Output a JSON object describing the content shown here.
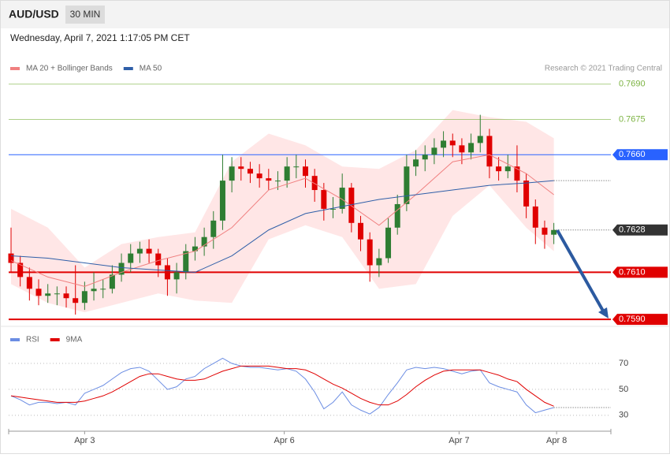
{
  "header": {
    "symbol": "AUD/USD",
    "interval": "30 MIN",
    "datetime": "Wednesday, April 7, 2021 1:17:05 PM CET",
    "credit": "Research © 2021 Trading Central"
  },
  "chart_data": [
    {
      "type": "candlestick",
      "up_color": "#2e7d32",
      "down_color": "#e00000",
      "xlim": [
        0,
        65.2
      ],
      "ylim": [
        0.7585,
        0.77
      ],
      "ohlc": [
        [
          0.7618,
          0.7629,
          0.761,
          0.7614
        ],
        [
          0.7614,
          0.7617,
          0.7604,
          0.7608
        ],
        [
          0.7608,
          0.7612,
          0.7598,
          0.7603
        ],
        [
          0.7603,
          0.7607,
          0.7596,
          0.76
        ],
        [
          0.76,
          0.7605,
          0.7597,
          0.7601
        ],
        [
          0.7601,
          0.7604,
          0.7596,
          0.7601
        ],
        [
          0.7601,
          0.7604,
          0.7595,
          0.7599
        ],
        [
          0.7599,
          0.7613,
          0.7592,
          0.7597
        ],
        [
          0.7597,
          0.7606,
          0.7594,
          0.7602
        ],
        [
          0.7602,
          0.761,
          0.7598,
          0.7603
        ],
        [
          0.7603,
          0.7607,
          0.7599,
          0.7603
        ],
        [
          0.7603,
          0.7613,
          0.7601,
          0.7609
        ],
        [
          0.7609,
          0.7618,
          0.7606,
          0.7614
        ],
        [
          0.7614,
          0.7622,
          0.761,
          0.7618
        ],
        [
          0.7618,
          0.7623,
          0.7614,
          0.762
        ],
        [
          0.762,
          0.7624,
          0.7614,
          0.7618
        ],
        [
          0.7618,
          0.762,
          0.7608,
          0.7613
        ],
        [
          0.7613,
          0.7616,
          0.76,
          0.7607
        ],
        [
          0.7607,
          0.7614,
          0.7601,
          0.761
        ],
        [
          0.761,
          0.7622,
          0.7607,
          0.7619
        ],
        [
          0.7619,
          0.7625,
          0.7615,
          0.7621
        ],
        [
          0.7621,
          0.7629,
          0.7617,
          0.7625
        ],
        [
          0.7625,
          0.7636,
          0.762,
          0.7632
        ],
        [
          0.7632,
          0.766,
          0.7628,
          0.7649
        ],
        [
          0.7649,
          0.7659,
          0.7644,
          0.7655
        ],
        [
          0.7655,
          0.7659,
          0.7649,
          0.7654
        ],
        [
          0.7654,
          0.7657,
          0.7648,
          0.7652
        ],
        [
          0.7652,
          0.7656,
          0.7646,
          0.765
        ],
        [
          0.765,
          0.7654,
          0.7645,
          0.7649
        ],
        [
          0.7649,
          0.7653,
          0.7645,
          0.7649
        ],
        [
          0.7649,
          0.7659,
          0.7646,
          0.7655
        ],
        [
          0.7655,
          0.766,
          0.765,
          0.7655
        ],
        [
          0.7655,
          0.7658,
          0.7646,
          0.7651
        ],
        [
          0.7651,
          0.7654,
          0.764,
          0.7645
        ],
        [
          0.7645,
          0.7648,
          0.7632,
          0.7637
        ],
        [
          0.7637,
          0.7642,
          0.7633,
          0.7637
        ],
        [
          0.7637,
          0.7652,
          0.7635,
          0.7646
        ],
        [
          0.7646,
          0.7648,
          0.7627,
          0.7631
        ],
        [
          0.7631,
          0.7634,
          0.7619,
          0.7624
        ],
        [
          0.7624,
          0.7627,
          0.7606,
          0.7613
        ],
        [
          0.7613,
          0.762,
          0.7608,
          0.7616
        ],
        [
          0.7616,
          0.7633,
          0.7614,
          0.7629
        ],
        [
          0.7629,
          0.7643,
          0.7626,
          0.7639
        ],
        [
          0.7639,
          0.766,
          0.7636,
          0.7655
        ],
        [
          0.7655,
          0.7662,
          0.7651,
          0.7658
        ],
        [
          0.7658,
          0.7664,
          0.7653,
          0.766
        ],
        [
          0.766,
          0.7667,
          0.7656,
          0.7663
        ],
        [
          0.7663,
          0.767,
          0.7659,
          0.7666
        ],
        [
          0.7666,
          0.7669,
          0.7659,
          0.7664
        ],
        [
          0.7664,
          0.7667,
          0.7656,
          0.7661
        ],
        [
          0.7661,
          0.7669,
          0.7658,
          0.7665
        ],
        [
          0.7665,
          0.7677,
          0.7661,
          0.7668
        ],
        [
          0.7668,
          0.7671,
          0.765,
          0.7655
        ],
        [
          0.7655,
          0.7659,
          0.7649,
          0.7653
        ],
        [
          0.7653,
          0.766,
          0.765,
          0.7655
        ],
        [
          0.7655,
          0.7664,
          0.7644,
          0.7649
        ],
        [
          0.7649,
          0.7652,
          0.7633,
          0.7638
        ],
        [
          0.7638,
          0.7641,
          0.7622,
          0.7629
        ],
        [
          0.7629,
          0.7632,
          0.762,
          0.7626
        ],
        [
          0.7626,
          0.7631,
          0.7622,
          0.7628
        ]
      ],
      "series": [
        {
          "name": "MA 20 + Bollinger Bands",
          "color": "#f08080",
          "band_color": "#ffe0e0",
          "x": [
            0,
            4,
            8,
            12,
            16,
            20,
            24,
            28,
            32,
            36,
            40,
            44,
            48,
            52,
            56,
            59
          ],
          "values": [
            0.7615,
            0.7608,
            0.7604,
            0.761,
            0.7615,
            0.7619,
            0.7629,
            0.7645,
            0.765,
            0.7641,
            0.763,
            0.7643,
            0.7657,
            0.766,
            0.7652,
            0.7643
          ],
          "upper": [
            0.7637,
            0.7629,
            0.7612,
            0.7622,
            0.7625,
            0.7627,
            0.7657,
            0.7669,
            0.7664,
            0.7655,
            0.7654,
            0.7662,
            0.7679,
            0.7676,
            0.7674,
            0.7667
          ],
          "lower": [
            0.7605,
            0.7597,
            0.7593,
            0.7597,
            0.7601,
            0.7598,
            0.7597,
            0.7624,
            0.763,
            0.7625,
            0.7603,
            0.7605,
            0.7634,
            0.7647,
            0.7629,
            0.7619
          ]
        },
        {
          "name": "MA 50",
          "color": "#2f5fa8",
          "x": [
            0,
            4,
            8,
            12,
            16,
            20,
            24,
            28,
            32,
            36,
            40,
            44,
            48,
            52,
            56,
            59
          ],
          "values": [
            0.7617,
            0.7616,
            0.7614,
            0.7612,
            0.7611,
            0.761,
            0.7617,
            0.7628,
            0.7635,
            0.7638,
            0.7641,
            0.7643,
            0.7645,
            0.7647,
            0.7648,
            0.7649
          ]
        }
      ],
      "levels": [
        {
          "value": 0.769,
          "label": "0.7690",
          "color": "#7cb342",
          "boxed": false,
          "width": 0.6
        },
        {
          "value": 0.7675,
          "label": "0.7675",
          "color": "#7cb342",
          "boxed": false,
          "width": 0.6
        },
        {
          "value": 0.766,
          "label": "0.7660",
          "color": "#2962ff",
          "boxed": true,
          "width": 1
        },
        {
          "value": 0.7628,
          "label": "0.7628",
          "color": "#333333",
          "boxed": true,
          "width": 0,
          "dotted": true
        },
        {
          "value": 0.761,
          "label": "0.7610",
          "color": "#e00000",
          "boxed": true,
          "width": 2
        },
        {
          "value": 0.759,
          "label": "0.7590",
          "color": "#e00000",
          "boxed": true,
          "width": 2
        }
      ]
    },
    {
      "type": "line",
      "xlim": [
        0,
        65.2
      ],
      "ylim": [
        22,
        84
      ],
      "yticks": [
        30,
        50,
        70
      ],
      "grid": true,
      "xticks": [
        {
          "value": 8,
          "label": "Apr 3"
        },
        {
          "value": 29.7,
          "label": "Apr 6"
        },
        {
          "value": 48.7,
          "label": "Apr 7"
        },
        {
          "value": 59.3,
          "label": "Apr 8"
        }
      ],
      "series": [
        {
          "name": "RSI",
          "color": "#6b8de3",
          "values": [
            45,
            42,
            38,
            40,
            40,
            39,
            40,
            38,
            47,
            50,
            53,
            58,
            63,
            66,
            67,
            64,
            57,
            50,
            52,
            58,
            60,
            66,
            70,
            74,
            70,
            68,
            67,
            67,
            66,
            65,
            66,
            64,
            58,
            48,
            35,
            40,
            48,
            38,
            34,
            31,
            36,
            46,
            55,
            65,
            67,
            66,
            67,
            66,
            64,
            62,
            64,
            65,
            55,
            52,
            50,
            48,
            38,
            32,
            34,
            36
          ]
        },
        {
          "name": "9MA",
          "color": "#e00000",
          "values": [
            45,
            44,
            43,
            42,
            41,
            40,
            40,
            40,
            41,
            43,
            45,
            48,
            52,
            56,
            60,
            62,
            62,
            60,
            58,
            57,
            57,
            58,
            61,
            64,
            66,
            68,
            68,
            68,
            68,
            67,
            66,
            66,
            65,
            62,
            58,
            54,
            51,
            47,
            43,
            40,
            38,
            38,
            41,
            46,
            52,
            57,
            61,
            64,
            65,
            65,
            65,
            65,
            63,
            61,
            58,
            56,
            50,
            45,
            40,
            37
          ]
        }
      ]
    }
  ]
}
